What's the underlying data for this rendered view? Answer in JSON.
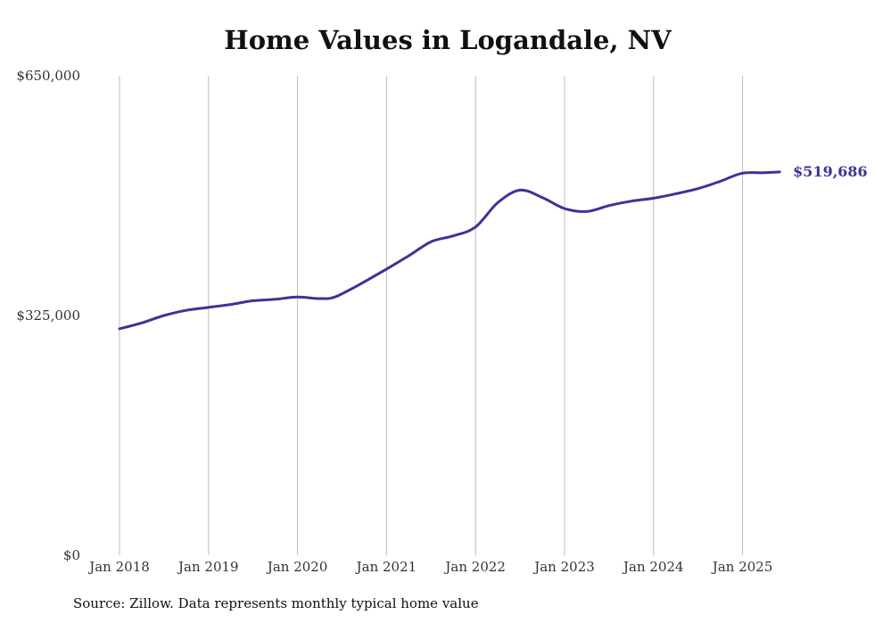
{
  "chart_data": {
    "type": "line",
    "title": "Home Values in Logandale, NV",
    "source": "Source: Zillow. Data represents monthly typical home value",
    "xlabel": "",
    "ylabel": "",
    "x_ticks": [
      "Jan 2018",
      "Jan 2019",
      "Jan 2020",
      "Jan 2021",
      "Jan 2022",
      "Jan 2023",
      "Jan 2024",
      "Jan 2025"
    ],
    "y_ticks": [
      {
        "value": 0,
        "label": "$0"
      },
      {
        "value": 325000,
        "label": "$325,000"
      },
      {
        "value": 650000,
        "label": "$650,000"
      }
    ],
    "ylim": [
      0,
      650000
    ],
    "xlim": [
      "2018-01",
      "2025-06"
    ],
    "grid": "vertical",
    "line_color": "#3b3496",
    "end_label": "$519,686",
    "series": [
      {
        "name": "",
        "points": [
          {
            "x": "2018-01",
            "y": 307000
          },
          {
            "x": "2018-04",
            "y": 315000
          },
          {
            "x": "2018-07",
            "y": 325000
          },
          {
            "x": "2018-10",
            "y": 332000
          },
          {
            "x": "2019-01",
            "y": 336000
          },
          {
            "x": "2019-04",
            "y": 340000
          },
          {
            "x": "2019-07",
            "y": 345000
          },
          {
            "x": "2019-10",
            "y": 347000
          },
          {
            "x": "2020-01",
            "y": 350000
          },
          {
            "x": "2020-04",
            "y": 348000
          },
          {
            "x": "2020-06",
            "y": 350000
          },
          {
            "x": "2020-09",
            "y": 365000
          },
          {
            "x": "2021-01",
            "y": 388000
          },
          {
            "x": "2021-04",
            "y": 406000
          },
          {
            "x": "2021-07",
            "y": 425000
          },
          {
            "x": "2021-10",
            "y": 433000
          },
          {
            "x": "2022-01",
            "y": 445000
          },
          {
            "x": "2022-04",
            "y": 478000
          },
          {
            "x": "2022-07",
            "y": 495000
          },
          {
            "x": "2022-10",
            "y": 485000
          },
          {
            "x": "2023-01",
            "y": 470000
          },
          {
            "x": "2023-04",
            "y": 466000
          },
          {
            "x": "2023-07",
            "y": 474000
          },
          {
            "x": "2023-10",
            "y": 480000
          },
          {
            "x": "2024-01",
            "y": 484000
          },
          {
            "x": "2024-04",
            "y": 490000
          },
          {
            "x": "2024-07",
            "y": 497000
          },
          {
            "x": "2024-10",
            "y": 507000
          },
          {
            "x": "2025-01",
            "y": 518000
          },
          {
            "x": "2025-04",
            "y": 518500
          },
          {
            "x": "2025-06",
            "y": 519686
          }
        ]
      }
    ]
  }
}
